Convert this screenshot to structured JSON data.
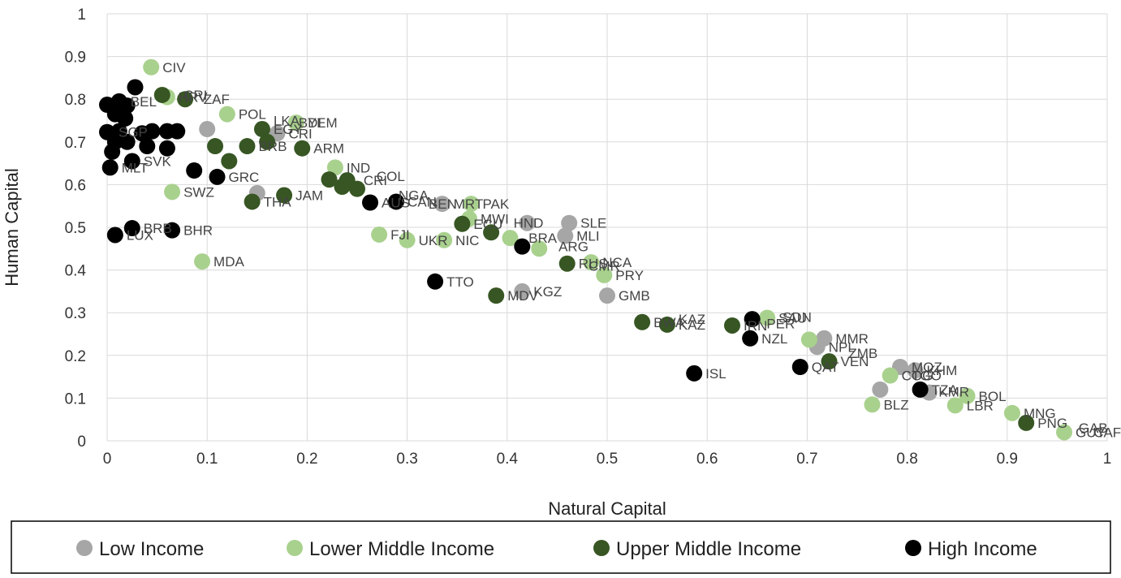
{
  "chart_data": {
    "type": "scatter",
    "title": "",
    "xlabel": "Natural Capital",
    "ylabel": "Human Capital",
    "xlim": [
      0,
      1
    ],
    "ylim": [
      0,
      1
    ],
    "xticks": [
      "0",
      "0.1",
      "0.2",
      "0.3",
      "0.4",
      "0.5",
      "0.6",
      "0.7",
      "0.8",
      "0.9",
      "1"
    ],
    "yticks": [
      "0",
      "0.1",
      "0.2",
      "0.3",
      "0.4",
      "0.5",
      "0.6",
      "0.7",
      "0.8",
      "0.9",
      "1"
    ],
    "grid": true,
    "legend_position": "bottom",
    "series": [
      {
        "name": "Low Income",
        "color": "#a6a6a6",
        "points": [
          {
            "x": 0.1,
            "y": 0.73,
            "label": ""
          },
          {
            "x": 0.15,
            "y": 0.58,
            "label": ""
          },
          {
            "x": 0.17,
            "y": 0.72,
            "label": ""
          },
          {
            "x": 0.335,
            "y": 0.555,
            "label": "MRT"
          },
          {
            "x": 0.42,
            "y": 0.51,
            "label": ""
          },
          {
            "x": 0.462,
            "y": 0.51,
            "label": "SLE"
          },
          {
            "x": 0.458,
            "y": 0.48,
            "label": "MLI"
          },
          {
            "x": 0.415,
            "y": 0.35,
            "label": "KGZ"
          },
          {
            "x": 0.5,
            "y": 0.34,
            "label": "GMB"
          },
          {
            "x": 0.717,
            "y": 0.24,
            "label": "MMR"
          },
          {
            "x": 0.71,
            "y": 0.22,
            "label": "NPL"
          },
          {
            "x": 0.793,
            "y": 0.173,
            "label": "MOZ"
          },
          {
            "x": 0.808,
            "y": 0.165,
            "label": "KHM"
          },
          {
            "x": 0.773,
            "y": 0.12,
            "label": ""
          },
          {
            "x": 0.822,
            "y": 0.113,
            "label": ""
          }
        ]
      },
      {
        "name": "Lower Middle Income",
        "color": "#a9d18e",
        "points": [
          {
            "x": 0.044,
            "y": 0.875,
            "label": "CIV"
          },
          {
            "x": 0.06,
            "y": 0.805,
            "label": "HRV"
          },
          {
            "x": 0.12,
            "y": 0.765,
            "label": "POL"
          },
          {
            "x": 0.189,
            "y": 0.745,
            "label": "YEM"
          },
          {
            "x": 0.228,
            "y": 0.64,
            "label": "IND"
          },
          {
            "x": 0.065,
            "y": 0.583,
            "label": "SWZ"
          },
          {
            "x": 0.364,
            "y": 0.555,
            "label": "PAK"
          },
          {
            "x": 0.362,
            "y": 0.52,
            "label": "MWI"
          },
          {
            "x": 0.272,
            "y": 0.483,
            "label": "FJI"
          },
          {
            "x": 0.3,
            "y": 0.47,
            "label": "UKR"
          },
          {
            "x": 0.337,
            "y": 0.47,
            "label": "NIC"
          },
          {
            "x": 0.403,
            "y": 0.475,
            "label": ""
          },
          {
            "x": 0.432,
            "y": 0.45,
            "label": ""
          },
          {
            "x": 0.484,
            "y": 0.418,
            "label": "NCA"
          },
          {
            "x": 0.497,
            "y": 0.388,
            "label": "PRY"
          },
          {
            "x": 0.095,
            "y": 0.42,
            "label": "MDA"
          },
          {
            "x": 0.66,
            "y": 0.288,
            "label": "SAU"
          },
          {
            "x": 0.702,
            "y": 0.237,
            "label": ""
          },
          {
            "x": 0.783,
            "y": 0.153,
            "label": "COG"
          },
          {
            "x": 0.765,
            "y": 0.085,
            "label": "BLZ"
          },
          {
            "x": 0.848,
            "y": 0.083,
            "label": "LBR"
          },
          {
            "x": 0.86,
            "y": 0.105,
            "label": "BOL"
          },
          {
            "x": 0.905,
            "y": 0.065,
            "label": "MNG"
          },
          {
            "x": 0.957,
            "y": 0.02,
            "label": "GUY"
          }
        ]
      },
      {
        "name": "Upper Middle Income",
        "color": "#375623",
        "points": [
          {
            "x": 0.055,
            "y": 0.81,
            "label": ""
          },
          {
            "x": 0.078,
            "y": 0.8,
            "label": ""
          },
          {
            "x": 0.108,
            "y": 0.69,
            "label": ""
          },
          {
            "x": 0.122,
            "y": 0.655,
            "label": ""
          },
          {
            "x": 0.14,
            "y": 0.69,
            "label": "BRB"
          },
          {
            "x": 0.155,
            "y": 0.73,
            "label": "EGY"
          },
          {
            "x": 0.16,
            "y": 0.7,
            "label": ""
          },
          {
            "x": 0.195,
            "y": 0.685,
            "label": "ARM"
          },
          {
            "x": 0.145,
            "y": 0.56,
            "label": "THA"
          },
          {
            "x": 0.177,
            "y": 0.575,
            "label": "JAM"
          },
          {
            "x": 0.222,
            "y": 0.612,
            "label": ""
          },
          {
            "x": 0.235,
            "y": 0.595,
            "label": ""
          },
          {
            "x": 0.24,
            "y": 0.61,
            "label": ""
          },
          {
            "x": 0.25,
            "y": 0.59,
            "label": ""
          },
          {
            "x": 0.355,
            "y": 0.508,
            "label": "ECU"
          },
          {
            "x": 0.384,
            "y": 0.488,
            "label": ""
          },
          {
            "x": 0.389,
            "y": 0.34,
            "label": "MDV"
          },
          {
            "x": 0.46,
            "y": 0.415,
            "label": "RUS"
          },
          {
            "x": 0.535,
            "y": 0.278,
            "label": "BWA"
          },
          {
            "x": 0.56,
            "y": 0.272,
            "label": "KAZ"
          },
          {
            "x": 0.625,
            "y": 0.27,
            "label": "IRN"
          },
          {
            "x": 0.722,
            "y": 0.186,
            "label": "VEN"
          },
          {
            "x": 0.919,
            "y": 0.042,
            "label": "PNG"
          }
        ]
      },
      {
        "name": "High Income",
        "color": "#000000",
        "points": [
          {
            "x": 0.028,
            "y": 0.828,
            "label": ""
          },
          {
            "x": 0.0,
            "y": 0.787,
            "label": ""
          },
          {
            "x": 0.012,
            "y": 0.795,
            "label": "BEL"
          },
          {
            "x": 0.02,
            "y": 0.785,
            "label": ""
          },
          {
            "x": 0.008,
            "y": 0.765,
            "label": ""
          },
          {
            "x": 0.018,
            "y": 0.755,
            "label": ""
          },
          {
            "x": 0.0,
            "y": 0.723,
            "label": "SGP"
          },
          {
            "x": 0.012,
            "y": 0.725,
            "label": ""
          },
          {
            "x": 0.035,
            "y": 0.72,
            "label": ""
          },
          {
            "x": 0.045,
            "y": 0.725,
            "label": ""
          },
          {
            "x": 0.06,
            "y": 0.725,
            "label": ""
          },
          {
            "x": 0.07,
            "y": 0.725,
            "label": ""
          },
          {
            "x": 0.008,
            "y": 0.7,
            "label": ""
          },
          {
            "x": 0.02,
            "y": 0.7,
            "label": ""
          },
          {
            "x": 0.04,
            "y": 0.69,
            "label": ""
          },
          {
            "x": 0.06,
            "y": 0.685,
            "label": ""
          },
          {
            "x": 0.005,
            "y": 0.677,
            "label": ""
          },
          {
            "x": 0.003,
            "y": 0.64,
            "label": "MLT"
          },
          {
            "x": 0.025,
            "y": 0.655,
            "label": "SVK"
          },
          {
            "x": 0.087,
            "y": 0.633,
            "label": ""
          },
          {
            "x": 0.11,
            "y": 0.618,
            "label": "GRC"
          },
          {
            "x": 0.263,
            "y": 0.558,
            "label": "AUS"
          },
          {
            "x": 0.289,
            "y": 0.56,
            "label": "CAN"
          },
          {
            "x": 0.025,
            "y": 0.498,
            "label": "BRB"
          },
          {
            "x": 0.065,
            "y": 0.493,
            "label": "BHR"
          },
          {
            "x": 0.008,
            "y": 0.482,
            "label": "LUX"
          },
          {
            "x": 0.328,
            "y": 0.373,
            "label": "TTO"
          },
          {
            "x": 0.415,
            "y": 0.455,
            "label": ""
          },
          {
            "x": 0.587,
            "y": 0.158,
            "label": "ISL"
          },
          {
            "x": 0.645,
            "y": 0.285,
            "label": ""
          },
          {
            "x": 0.643,
            "y": 0.24,
            "label": "NZL"
          },
          {
            "x": 0.693,
            "y": 0.173,
            "label": "QAT"
          },
          {
            "x": 0.813,
            "y": 0.12,
            "label": "TZA"
          }
        ]
      }
    ],
    "extra_labels": [
      {
        "x": 0.065,
        "y": 0.81,
        "text": "CRI"
      },
      {
        "x": 0.085,
        "y": 0.8,
        "text": "ZAF"
      },
      {
        "x": 0.155,
        "y": 0.75,
        "text": "LKA"
      },
      {
        "x": 0.17,
        "y": 0.72,
        "text": "CRI"
      },
      {
        "x": 0.18,
        "y": 0.745,
        "text": "BDI"
      },
      {
        "x": 0.245,
        "y": 0.61,
        "text": "CRI"
      },
      {
        "x": 0.258,
        "y": 0.62,
        "text": "COL"
      },
      {
        "x": 0.28,
        "y": 0.575,
        "text": "NGA"
      },
      {
        "x": 0.31,
        "y": 0.555,
        "text": "BEN"
      },
      {
        "x": 0.395,
        "y": 0.51,
        "text": "HND"
      },
      {
        "x": 0.41,
        "y": 0.475,
        "text": "BRA"
      },
      {
        "x": 0.44,
        "y": 0.455,
        "text": "ARG"
      },
      {
        "x": 0.47,
        "y": 0.41,
        "text": "CMR"
      },
      {
        "x": 0.56,
        "y": 0.285,
        "text": "KAZ"
      },
      {
        "x": 0.648,
        "y": 0.275,
        "text": "PER"
      },
      {
        "x": 0.664,
        "y": 0.29,
        "text": "SDN"
      },
      {
        "x": 0.73,
        "y": 0.205,
        "text": "ZMB"
      },
      {
        "x": 0.793,
        "y": 0.153,
        "text": "TGO"
      },
      {
        "x": 0.82,
        "y": 0.115,
        "text": "KMR"
      },
      {
        "x": 0.96,
        "y": 0.03,
        "text": "GAB"
      },
      {
        "x": 0.975,
        "y": 0.02,
        "text": "CAF"
      }
    ]
  }
}
